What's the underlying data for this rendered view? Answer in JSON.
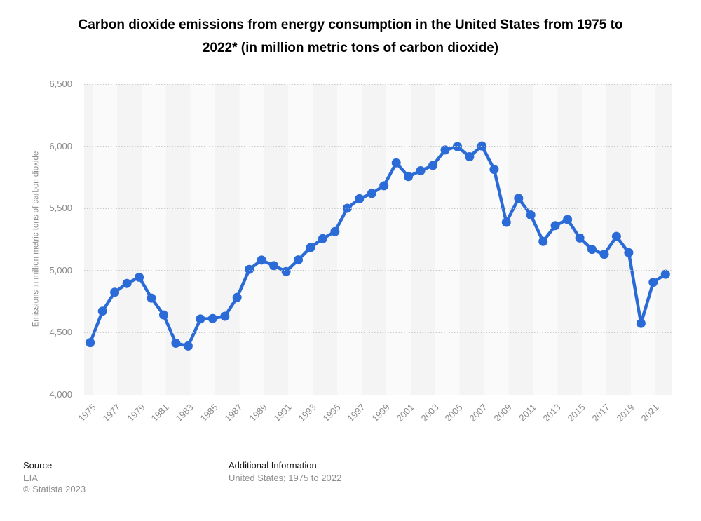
{
  "title_lines": [
    "Carbon dioxide emissions from energy consumption in the United States from 1975 to",
    "2022* (in million metric tons of carbon dioxide)"
  ],
  "chart_data": {
    "type": "line",
    "x": [
      1975,
      1976,
      1977,
      1978,
      1979,
      1980,
      1981,
      1982,
      1983,
      1984,
      1985,
      1986,
      1987,
      1988,
      1989,
      1990,
      1991,
      1992,
      1993,
      1994,
      1995,
      1996,
      1997,
      1998,
      1999,
      2000,
      2001,
      2002,
      2003,
      2004,
      2005,
      2006,
      2007,
      2008,
      2009,
      2010,
      2011,
      2012,
      2013,
      2014,
      2015,
      2016,
      2017,
      2018,
      2019,
      2020,
      2021,
      2022
    ],
    "values": [
      4420,
      4673,
      4825,
      4896,
      4946,
      4778,
      4643,
      4415,
      4393,
      4610,
      4614,
      4632,
      4784,
      5009,
      5084,
      5039,
      4992,
      5086,
      5185,
      5257,
      5314,
      5501,
      5578,
      5620,
      5682,
      5866,
      5756,
      5803,
      5846,
      5970,
      5998,
      5916,
      6003,
      5814,
      5388,
      5582,
      5447,
      5234,
      5362,
      5411,
      5262,
      5170,
      5131,
      5275,
      5144,
      4575,
      4905,
      4970
    ],
    "series_name": "CO2 emissions from energy consumption",
    "ylabel": "Emissions in million metric tons of carbon dioxide",
    "xlabel": "",
    "ylim": [
      4000,
      6500
    ],
    "ytick_labels": [
      "6,500",
      "6,000",
      "5,500",
      "5,000",
      "4,500",
      "4,000"
    ],
    "xtick_labels": [
      "1975",
      "1977",
      "1979",
      "1981",
      "1983",
      "1985",
      "1987",
      "1989",
      "1991",
      "1993",
      "1995",
      "1997",
      "1999",
      "2001",
      "2003",
      "2005",
      "2007",
      "2009",
      "2011",
      "2013",
      "2015",
      "2017",
      "2019",
      "2021"
    ],
    "grid": "horizontal-dotted",
    "legend": "none",
    "line_color": "#2a6bd7",
    "marker": "circle",
    "plot_band_colors": [
      "#f4f4f4",
      "#fafafa"
    ]
  },
  "footer": {
    "source_label": "Source",
    "source_value": "EIA",
    "copyright": "© Statista 2023",
    "additional_label": "Additional Information:",
    "additional_value": "United States; 1975 to 2022"
  }
}
